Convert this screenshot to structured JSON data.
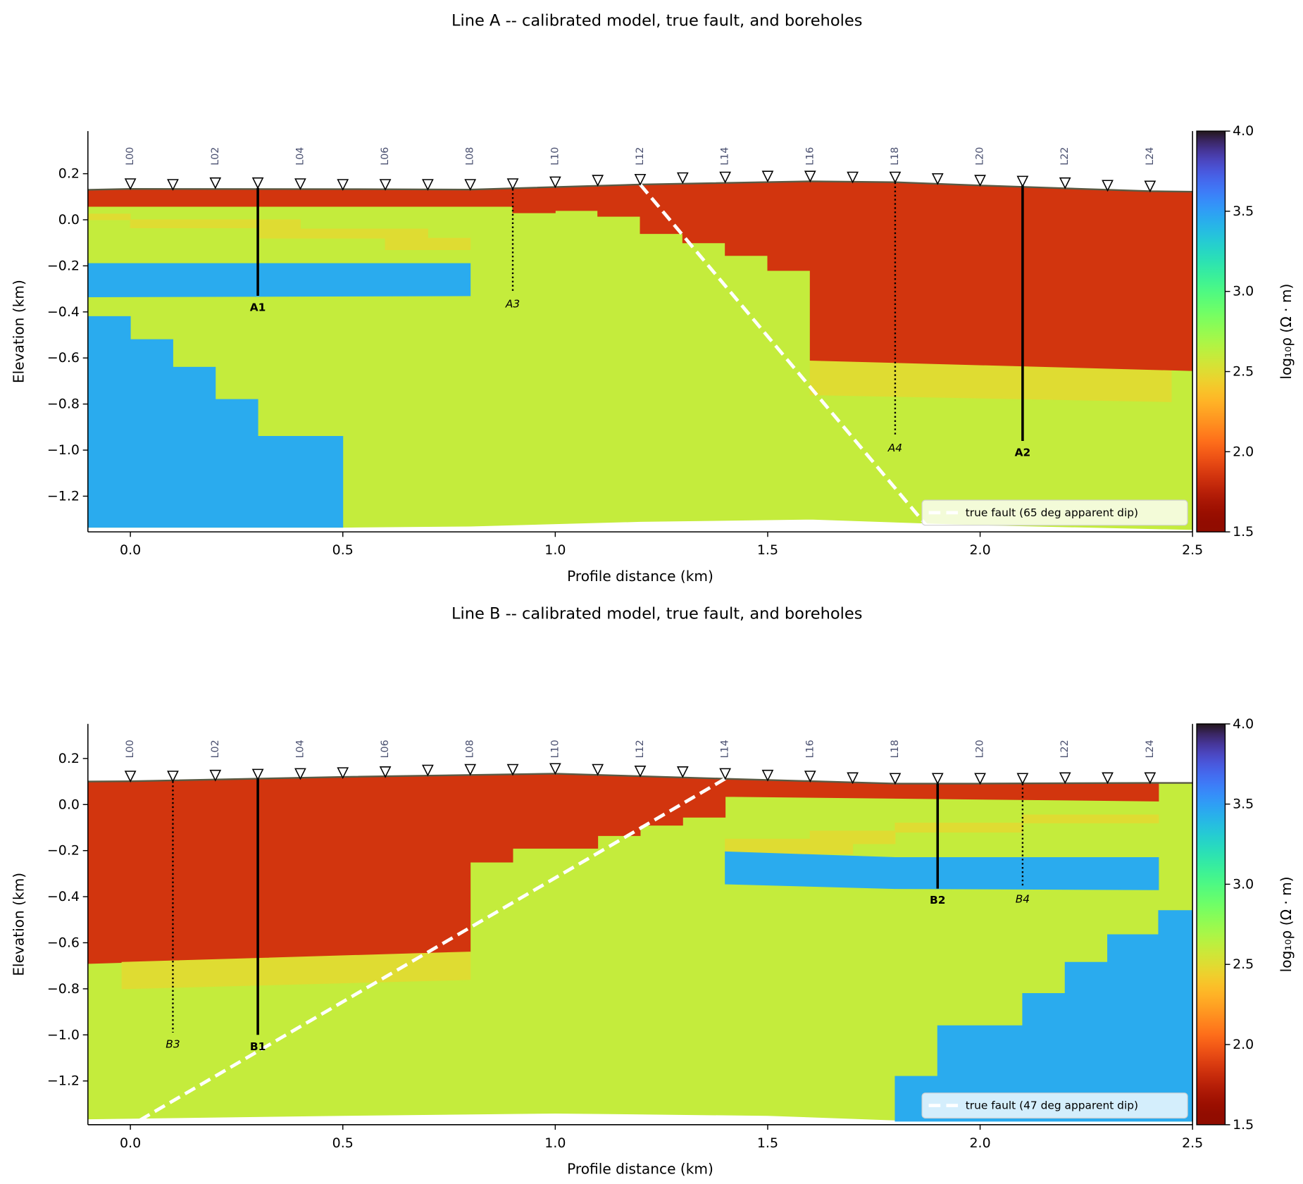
{
  "chart_data": [
    {
      "type": "section",
      "title": "Line A -- calibrated model, true fault, and boreholes",
      "xlabel": "Profile distance (km)",
      "ylabel": "Elevation (km)",
      "xlim": [
        -0.1,
        2.5
      ],
      "ylim": [
        -1.355,
        0.385
      ],
      "xticks": [
        {
          "value": 0,
          "label": "0.0"
        },
        0.5,
        {
          "value": 1,
          "label": "1.0"
        },
        1.5,
        {
          "value": 2,
          "label": "2.0"
        },
        2.5
      ],
      "yticks": [
        {
          "value": -1.2,
          "label": "−1.2"
        },
        {
          "value": -1,
          "label": "−1.0"
        },
        {
          "value": -0.8,
          "label": "−0.8"
        },
        {
          "value": -0.6,
          "label": "−0.6"
        },
        {
          "value": -0.4,
          "label": "−0.4"
        },
        {
          "value": -0.2,
          "label": "−0.2"
        },
        {
          "value": 0,
          "label": "0.0"
        },
        0.2
      ],
      "colormap": "turbo_r",
      "colorbar": {
        "label": "log₁₀ρ (Ω · m)",
        "lim": [
          1.5,
          4
        ],
        "ticks": [
          1.5,
          {
            "value": 2,
            "label": "2.0"
          },
          2.5,
          {
            "value": 3,
            "label": "3.0"
          },
          3.5,
          {
            "value": 4,
            "label": "4.0"
          }
        ]
      },
      "units": [
        {
          "value": 2.6,
          "x": [
            -0.1,
            0,
            0.5,
            0.8,
            1.2,
            1.6,
            1.8,
            2.0,
            2.4,
            2.5,
            2.5,
            2.0,
            1.6,
            1.2,
            0.8,
            0.5,
            -0.1
          ],
          "y": [
            0.13,
            0.134,
            0.133,
            0.131,
            0.153,
            0.167,
            0.163,
            0.149,
            0.124,
            0.122,
            -1.345,
            -1.325,
            -1.3,
            -1.31,
            -1.33,
            -1.335,
            -1.335
          ]
        },
        {
          "value": 2.5,
          "x": [
            -0.1,
            0,
            0,
            0.4,
            0.4,
            0.7,
            0.7,
            0.8,
            0.8,
            0.6,
            0.6,
            0.3,
            0.3,
            0,
            0,
            -0.1
          ],
          "y": [
            0.025,
            0.025,
            0,
            0,
            -0.04,
            -0.04,
            -0.08,
            -0.08,
            -0.13,
            -0.13,
            -0.08,
            -0.08,
            -0.035,
            -0.035,
            0,
            0
          ]
        },
        {
          "value": 3.45,
          "x": [
            -0.1,
            0.8,
            0.8,
            -0.1
          ],
          "y": [
            -0.19,
            -0.19,
            -0.33,
            -0.335
          ]
        },
        {
          "value": 3.45,
          "x": [
            -0.1,
            0,
            0,
            0.1,
            0.1,
            0.2,
            0.2,
            0.3,
            0.3,
            0.5,
            0.5,
            -0.1
          ],
          "y": [
            -0.42,
            -0.42,
            -0.52,
            -0.52,
            -0.64,
            -0.64,
            -0.78,
            -0.78,
            -0.94,
            -0.94,
            -1.335,
            -1.335
          ]
        },
        {
          "value": 2.5,
          "x": [
            1.6,
            2.45,
            2.45,
            1.6
          ],
          "y": [
            -0.61,
            -0.65,
            -0.79,
            -0.76
          ]
        },
        {
          "value": 1.85,
          "x": [
            -0.1,
            0,
            0.5,
            0.8,
            1.2,
            1.6,
            1.8,
            2.0,
            2.4,
            2.5,
            2.5,
            1.6,
            1.6,
            1.5,
            1.5,
            1.4,
            1.4,
            1.3,
            1.3,
            1.2,
            1.2,
            1.1,
            1.1,
            1.0,
            1.0,
            0.9,
            0.9,
            -0.1
          ],
          "y": [
            0.13,
            0.134,
            0.133,
            0.131,
            0.153,
            0.167,
            0.163,
            0.149,
            0.124,
            0.122,
            -0.655,
            -0.61,
            -0.22,
            -0.22,
            -0.155,
            -0.155,
            -0.1,
            -0.1,
            -0.06,
            -0.06,
            0.015,
            0.015,
            0.04,
            0.04,
            0.03,
            0.03,
            0.058,
            0.058
          ]
        }
      ],
      "surface": {
        "x": [
          -0.1,
          0,
          0.5,
          0.8,
          1.2,
          1.6,
          1.8,
          2.0,
          2.4,
          2.5
        ],
        "y": [
          0.13,
          0.134,
          0.133,
          0.131,
          0.153,
          0.167,
          0.163,
          0.149,
          0.124,
          0.122
        ]
      },
      "stations": {
        "x": [
          0,
          0.1,
          0.2,
          0.3,
          0.4,
          0.5,
          0.6,
          0.7,
          0.8,
          0.9,
          1.0,
          1.1,
          1.2,
          1.3,
          1.4,
          1.5,
          1.6,
          1.7,
          1.8,
          1.9,
          2.0,
          2.1,
          2.2,
          2.3,
          2.4
        ],
        "y": [
          0.134,
          0.131,
          0.138,
          0.138,
          0.134,
          0.131,
          0.131,
          0.131,
          0.131,
          0.134,
          0.142,
          0.149,
          0.153,
          0.16,
          0.163,
          0.167,
          0.167,
          0.163,
          0.163,
          0.156,
          0.149,
          0.145,
          0.138,
          0.127,
          0.124
        ],
        "labels": [
          "L00",
          null,
          "L02",
          null,
          "L04",
          null,
          "L06",
          null,
          "L08",
          null,
          "L10",
          null,
          "L12",
          null,
          "L14",
          null,
          "L16",
          null,
          "L18",
          null,
          "L20",
          null,
          "L22",
          null,
          "L24"
        ]
      },
      "boreholes": [
        {
          "name": "A1",
          "x": 0.3,
          "top": 0.138,
          "bottom": -0.33,
          "style": "solid"
        },
        {
          "name": "A2",
          "x": 2.1,
          "top": 0.149,
          "bottom": -0.96,
          "style": "solid"
        },
        {
          "name": "A3",
          "x": 0.9,
          "top": 0.134,
          "bottom": -0.315,
          "style": "dotted"
        },
        {
          "name": "A4",
          "x": 1.8,
          "top": 0.163,
          "bottom": -0.94,
          "style": "dotted"
        }
      ],
      "fault": {
        "name": "true fault (65 deg apparent dip)",
        "x": [
          1.2,
          1.875
        ],
        "y": [
          0.153,
          -1.33
        ],
        "color": "#ffffff"
      },
      "legend": "lower right"
    },
    {
      "type": "section",
      "title": "Line B -- calibrated model, true fault, and boreholes",
      "xlabel": "Profile distance (km)",
      "ylabel": "Elevation (km)",
      "xlim": [
        -0.1,
        2.5
      ],
      "ylim": [
        -1.39,
        0.35
      ],
      "xticks": [
        {
          "value": 0,
          "label": "0.0"
        },
        0.5,
        {
          "value": 1,
          "label": "1.0"
        },
        1.5,
        {
          "value": 2,
          "label": "2.0"
        },
        2.5
      ],
      "yticks": [
        {
          "value": -1.2,
          "label": "−1.2"
        },
        {
          "value": -1,
          "label": "−1.0"
        },
        {
          "value": -0.8,
          "label": "−0.8"
        },
        {
          "value": -0.6,
          "label": "−0.6"
        },
        {
          "value": -0.4,
          "label": "−0.4"
        },
        {
          "value": -0.2,
          "label": "−0.2"
        },
        {
          "value": 0,
          "label": "0.0"
        },
        0.2
      ],
      "colormap": "turbo_r",
      "colorbar": {
        "label": "log₁₀ρ (Ω · m)",
        "lim": [
          1.5,
          4
        ],
        "ticks": [
          1.5,
          {
            "value": 2,
            "label": "2.0"
          },
          2.5,
          {
            "value": 3,
            "label": "3.0"
          },
          3.5,
          {
            "value": 4,
            "label": "4.0"
          }
        ]
      },
      "units": [
        {
          "value": 2.6,
          "x": [
            -0.1,
            0,
            0.5,
            1.0,
            1.4,
            1.8,
            2.0,
            2.4,
            2.5,
            2.5,
            1.8,
            1.5,
            1.0,
            0.5,
            -0.1
          ],
          "y": [
            0.1,
            0.101,
            0.12,
            0.134,
            0.112,
            0.091,
            0.091,
            0.094,
            0.094,
            -1.375,
            -1.37,
            -1.35,
            -1.34,
            -1.35,
            -1.365
          ]
        },
        {
          "value": 1.85,
          "x": [
            -0.1,
            0,
            0.5,
            1.0,
            1.4,
            1.8,
            2.0,
            2.42,
            2.42,
            1.4,
            1.4,
            1.3,
            1.3,
            1.2,
            1.2,
            1.1,
            1.1,
            0.9,
            0.9,
            0.8,
            0.8,
            -0.1
          ],
          "y": [
            0.1,
            0.101,
            0.12,
            0.134,
            0.112,
            0.091,
            0.091,
            0.094,
            0.015,
            0.035,
            -0.055,
            -0.055,
            -0.09,
            -0.09,
            -0.135,
            -0.135,
            -0.19,
            -0.19,
            -0.25,
            -0.25,
            -0.64,
            -0.69
          ]
        },
        {
          "value": 2.5,
          "x": [
            -0.02,
            0.8,
            0.8,
            -0.02
          ],
          "y": [
            -0.685,
            -0.64,
            -0.76,
            -0.8
          ]
        },
        {
          "value": 2.5,
          "x": [
            1.4,
            1.6,
            1.6,
            1.8,
            1.8,
            2.1,
            2.1,
            2.42,
            2.42,
            2.1,
            2.1,
            1.8,
            1.8,
            1.7,
            1.7,
            1.4
          ],
          "y": [
            -0.15,
            -0.15,
            -0.115,
            -0.115,
            -0.08,
            -0.08,
            -0.045,
            -0.045,
            -0.08,
            -0.08,
            -0.12,
            -0.12,
            -0.17,
            -0.17,
            -0.215,
            -0.215
          ]
        },
        {
          "value": 3.45,
          "x": [
            1.4,
            1.8,
            2.42,
            2.42,
            1.8,
            1.4
          ],
          "y": [
            -0.205,
            -0.23,
            -0.23,
            -0.37,
            -0.365,
            -0.345
          ]
        },
        {
          "value": 3.45,
          "x": [
            1.8,
            1.9,
            1.9,
            2.1,
            2.1,
            2.2,
            2.2,
            2.3,
            2.3,
            2.42,
            2.42,
            2.5,
            2.5,
            1.8
          ],
          "y": [
            -1.18,
            -1.18,
            -0.96,
            -0.96,
            -0.82,
            -0.82,
            -0.685,
            -0.685,
            -0.565,
            -0.565,
            -0.46,
            -0.46,
            -1.375,
            -1.375
          ]
        }
      ],
      "surface": {
        "x": [
          -0.1,
          0,
          0.5,
          1.0,
          1.4,
          1.8,
          2.0,
          2.4,
          2.5
        ],
        "y": [
          0.1,
          0.101,
          0.12,
          0.134,
          0.112,
          0.091,
          0.091,
          0.094,
          0.094
        ]
      },
      "stations": {
        "x": [
          0,
          0.1,
          0.2,
          0.3,
          0.4,
          0.5,
          0.6,
          0.7,
          0.8,
          0.9,
          1.0,
          1.1,
          1.2,
          1.3,
          1.4,
          1.5,
          1.6,
          1.7,
          1.8,
          1.9,
          2.0,
          2.1,
          2.2,
          2.3,
          2.4
        ],
        "y": [
          0.101,
          0.101,
          0.105,
          0.109,
          0.112,
          0.116,
          0.12,
          0.127,
          0.13,
          0.13,
          0.134,
          0.13,
          0.123,
          0.12,
          0.112,
          0.105,
          0.101,
          0.094,
          0.091,
          0.091,
          0.091,
          0.091,
          0.094,
          0.094,
          0.094
        ],
        "labels": [
          "L00",
          null,
          "L02",
          null,
          "L04",
          null,
          "L06",
          null,
          "L08",
          null,
          "L10",
          null,
          "L12",
          null,
          "L14",
          null,
          "L16",
          null,
          "L18",
          null,
          "L20",
          null,
          "L22",
          null,
          "L24"
        ]
      },
      "boreholes": [
        {
          "name": "B1",
          "x": 0.3,
          "top": 0.112,
          "bottom": -1.0,
          "style": "solid"
        },
        {
          "name": "B2",
          "x": 1.9,
          "top": 0.091,
          "bottom": -0.365,
          "style": "solid"
        },
        {
          "name": "B3",
          "x": 0.1,
          "top": 0.101,
          "bottom": -0.99,
          "style": "dotted"
        },
        {
          "name": "B4",
          "x": 2.1,
          "top": 0.091,
          "bottom": -0.36,
          "style": "dotted"
        }
      ],
      "fault": {
        "name": "true fault (47 deg apparent dip)",
        "x": [
          1.4,
          0.016
        ],
        "y": [
          0.112,
          -1.377
        ],
        "color": "#ffffff"
      },
      "legend": "lower right"
    }
  ]
}
